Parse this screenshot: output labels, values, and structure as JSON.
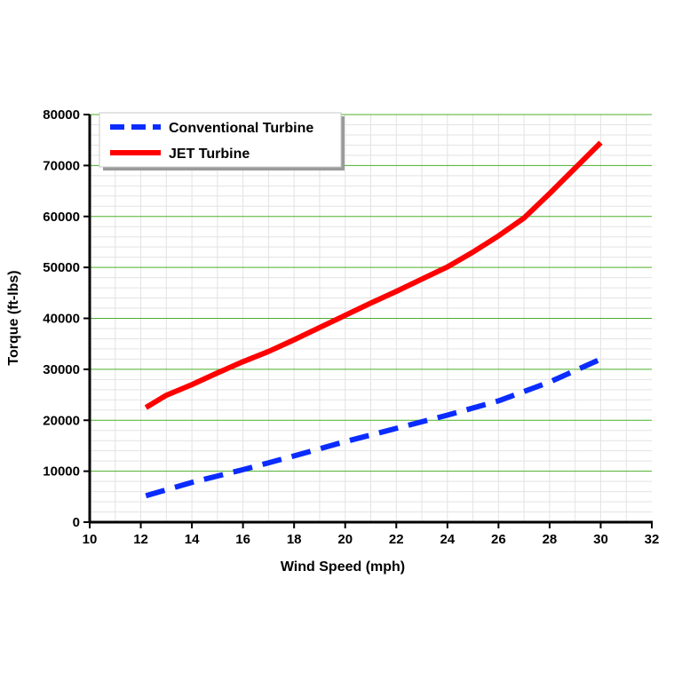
{
  "chart_data": {
    "type": "line",
    "xlabel": "Wind Speed (mph)",
    "ylabel": "Torque (ft-lbs)",
    "xlim": [
      10,
      32
    ],
    "ylim": [
      0,
      80000
    ],
    "x_ticks": [
      10,
      12,
      14,
      16,
      18,
      20,
      22,
      24,
      26,
      28,
      30,
      32
    ],
    "y_ticks": [
      0,
      10000,
      20000,
      30000,
      40000,
      50000,
      60000,
      70000,
      80000
    ],
    "grid": {
      "horizontal": true,
      "vertical_minor": true
    },
    "legend_position": "top-left",
    "series": [
      {
        "name": "Conventional Turbine",
        "color": "#0a2cff",
        "style": "dashed",
        "x": [
          12.2,
          14,
          16,
          18,
          20,
          22,
          24,
          26,
          28,
          30
        ],
        "y": [
          5200,
          7800,
          10300,
          13000,
          15800,
          18400,
          21000,
          23800,
          27500,
          32000
        ]
      },
      {
        "name": "JET Turbine",
        "color": "#ff0000",
        "style": "solid",
        "x": [
          12.2,
          13,
          14,
          15,
          16,
          17,
          18,
          19,
          20,
          21,
          22,
          23,
          24,
          25,
          26,
          27,
          28,
          29,
          30
        ],
        "y": [
          22500,
          24900,
          27000,
          29300,
          31500,
          33500,
          35800,
          38200,
          40600,
          43000,
          45300,
          47700,
          50100,
          53000,
          56200,
          59700,
          64500,
          69500,
          74500
        ]
      }
    ]
  }
}
